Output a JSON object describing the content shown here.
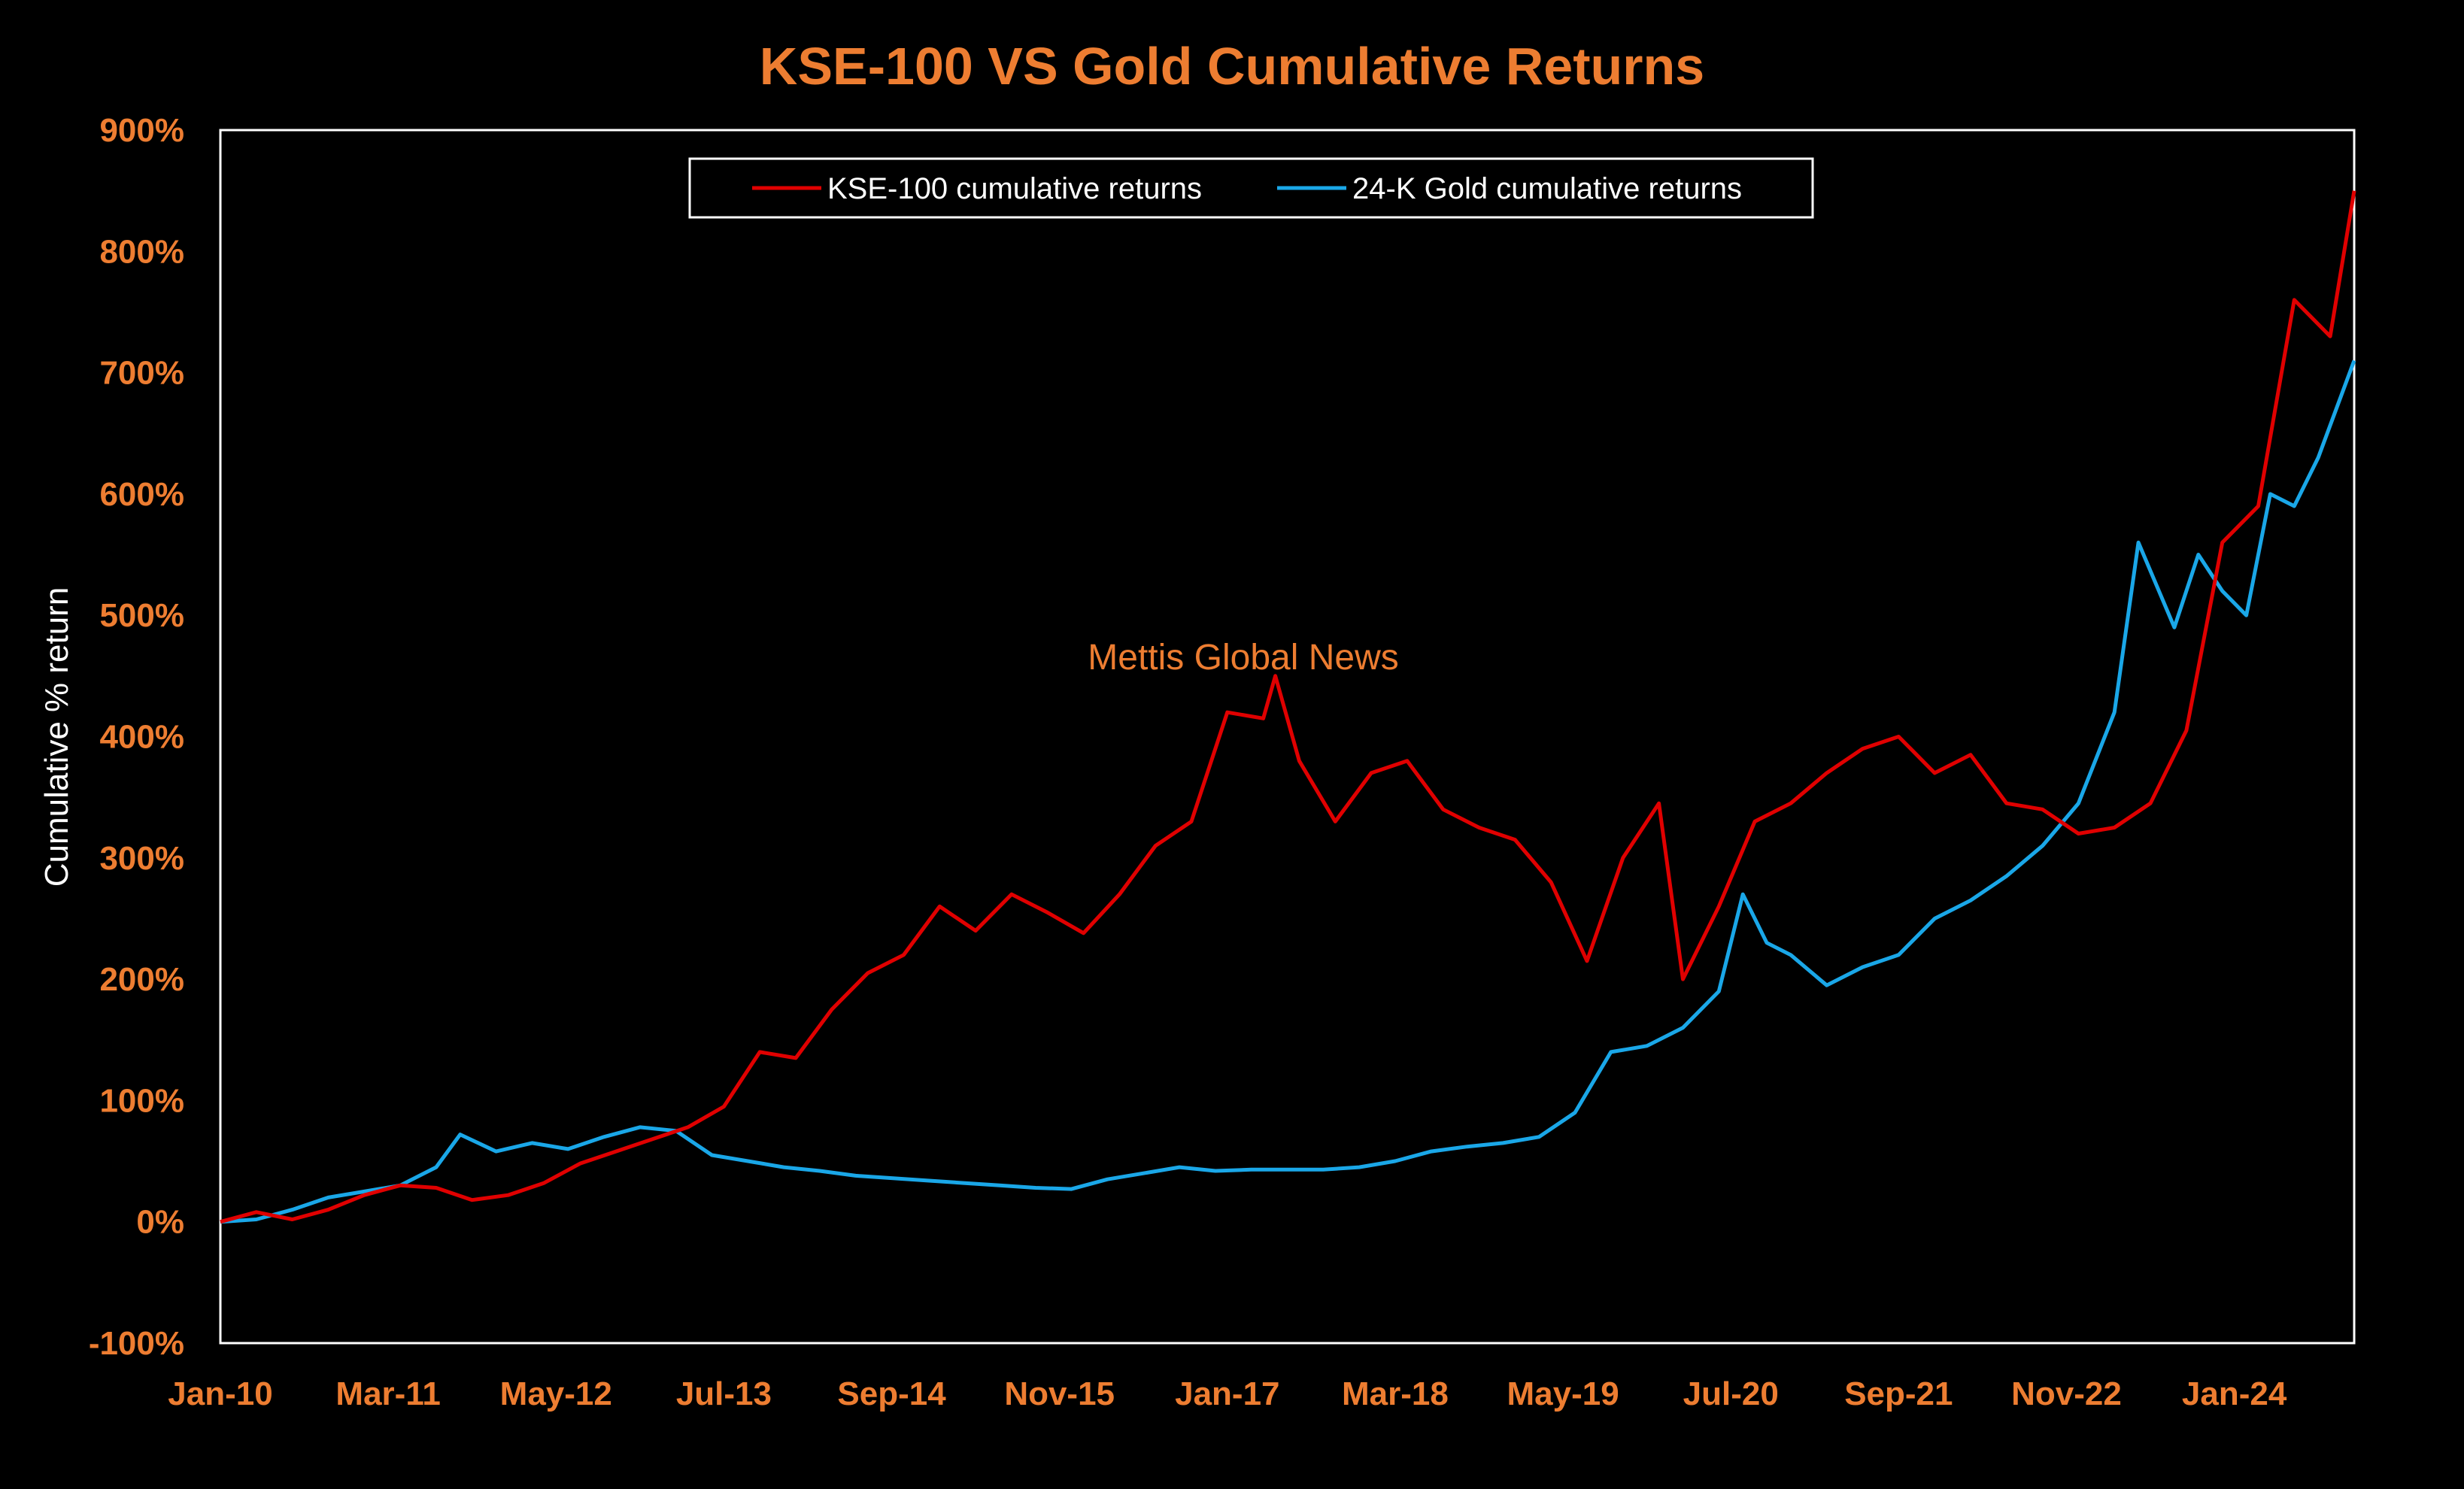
{
  "colors": {
    "background": "#000000",
    "accent": "#ED7D31",
    "axis_frame": "#FFFFFF",
    "kse": "#E00000",
    "gold": "#1AA7E8",
    "ylabel": "#FFFFFF",
    "legend_text": "#FFFFFF"
  },
  "watermark": "Mettis Global News",
  "chart_data": {
    "type": "line",
    "title": "KSE-100 VS Gold Cumulative Returns",
    "xlabel": "",
    "ylabel": "Cumulative % return",
    "ylim": [
      -100,
      900
    ],
    "xlim": [
      "2010-01",
      "2024-11"
    ],
    "yticks": [
      -100,
      0,
      100,
      200,
      300,
      400,
      500,
      600,
      700,
      800,
      900
    ],
    "ytick_labels": [
      "-100%",
      "0%",
      "100%",
      "200%",
      "300%",
      "400%",
      "500%",
      "600%",
      "700%",
      "800%",
      "900%"
    ],
    "xticks": [
      "2010-01",
      "2011-03",
      "2012-05",
      "2013-07",
      "2014-09",
      "2015-11",
      "2017-01",
      "2018-03",
      "2019-05",
      "2020-07",
      "2021-09",
      "2022-11",
      "2024-01"
    ],
    "xtick_labels": [
      "Jan-10",
      "Mar-11",
      "May-12",
      "Jul-13",
      "Sep-14",
      "Nov-15",
      "Jan-17",
      "Mar-18",
      "May-19",
      "Jul-20",
      "Sep-21",
      "Nov-22",
      "Jan-24"
    ],
    "grid": false,
    "legend_position": "top-center",
    "series": [
      {
        "name": "KSE-100 cumulative returns",
        "color": "#E00000",
        "points": [
          [
            "2010-01",
            0
          ],
          [
            "2010-04",
            8
          ],
          [
            "2010-07",
            2
          ],
          [
            "2010-10",
            10
          ],
          [
            "2011-01",
            22
          ],
          [
            "2011-04",
            30
          ],
          [
            "2011-07",
            28
          ],
          [
            "2011-10",
            18
          ],
          [
            "2012-01",
            22
          ],
          [
            "2012-04",
            32
          ],
          [
            "2012-07",
            48
          ],
          [
            "2012-10",
            58
          ],
          [
            "2013-01",
            68
          ],
          [
            "2013-04",
            78
          ],
          [
            "2013-07",
            95
          ],
          [
            "2013-10",
            140
          ],
          [
            "2014-01",
            135
          ],
          [
            "2014-04",
            175
          ],
          [
            "2014-07",
            205
          ],
          [
            "2014-10",
            220
          ],
          [
            "2015-01",
            260
          ],
          [
            "2015-04",
            240
          ],
          [
            "2015-07",
            270
          ],
          [
            "2015-10",
            255
          ],
          [
            "2016-01",
            238
          ],
          [
            "2016-04",
            270
          ],
          [
            "2016-07",
            310
          ],
          [
            "2016-10",
            330
          ],
          [
            "2017-01",
            420
          ],
          [
            "2017-04",
            415
          ],
          [
            "2017-05",
            450
          ],
          [
            "2017-07",
            380
          ],
          [
            "2017-10",
            330
          ],
          [
            "2018-01",
            370
          ],
          [
            "2018-04",
            380
          ],
          [
            "2018-07",
            340
          ],
          [
            "2018-10",
            325
          ],
          [
            "2019-01",
            315
          ],
          [
            "2019-04",
            280
          ],
          [
            "2019-07",
            215
          ],
          [
            "2019-10",
            300
          ],
          [
            "2020-01",
            345
          ],
          [
            "2020-03",
            200
          ],
          [
            "2020-06",
            260
          ],
          [
            "2020-09",
            330
          ],
          [
            "2020-12",
            345
          ],
          [
            "2021-03",
            370
          ],
          [
            "2021-06",
            390
          ],
          [
            "2021-09",
            400
          ],
          [
            "2021-12",
            370
          ],
          [
            "2022-03",
            385
          ],
          [
            "2022-06",
            345
          ],
          [
            "2022-09",
            340
          ],
          [
            "2022-12",
            320
          ],
          [
            "2023-03",
            325
          ],
          [
            "2023-06",
            345
          ],
          [
            "2023-09",
            405
          ],
          [
            "2023-12",
            560
          ],
          [
            "2024-03",
            590
          ],
          [
            "2024-06",
            760
          ],
          [
            "2024-09",
            730
          ],
          [
            "2024-11",
            850
          ]
        ]
      },
      {
        "name": "24-K Gold cumulative returns",
        "color": "#1AA7E8",
        "points": [
          [
            "2010-01",
            0
          ],
          [
            "2010-04",
            2
          ],
          [
            "2010-07",
            10
          ],
          [
            "2010-10",
            20
          ],
          [
            "2011-01",
            25
          ],
          [
            "2011-04",
            30
          ],
          [
            "2011-07",
            45
          ],
          [
            "2011-09",
            72
          ],
          [
            "2011-12",
            58
          ],
          [
            "2012-03",
            65
          ],
          [
            "2012-06",
            60
          ],
          [
            "2012-09",
            70
          ],
          [
            "2012-12",
            78
          ],
          [
            "2013-03",
            75
          ],
          [
            "2013-06",
            55
          ],
          [
            "2013-09",
            50
          ],
          [
            "2013-12",
            45
          ],
          [
            "2014-03",
            42
          ],
          [
            "2014-06",
            38
          ],
          [
            "2014-09",
            36
          ],
          [
            "2014-12",
            34
          ],
          [
            "2015-03",
            32
          ],
          [
            "2015-06",
            30
          ],
          [
            "2015-09",
            28
          ],
          [
            "2015-12",
            27
          ],
          [
            "2016-03",
            35
          ],
          [
            "2016-06",
            40
          ],
          [
            "2016-09",
            45
          ],
          [
            "2016-12",
            42
          ],
          [
            "2017-03",
            43
          ],
          [
            "2017-06",
            43
          ],
          [
            "2017-09",
            43
          ],
          [
            "2017-12",
            45
          ],
          [
            "2018-03",
            50
          ],
          [
            "2018-06",
            58
          ],
          [
            "2018-09",
            62
          ],
          [
            "2018-12",
            65
          ],
          [
            "2019-03",
            70
          ],
          [
            "2019-06",
            90
          ],
          [
            "2019-09",
            140
          ],
          [
            "2019-12",
            145
          ],
          [
            "2020-03",
            160
          ],
          [
            "2020-06",
            190
          ],
          [
            "2020-08",
            270
          ],
          [
            "2020-10",
            230
          ],
          [
            "2020-12",
            220
          ],
          [
            "2021-03",
            195
          ],
          [
            "2021-06",
            210
          ],
          [
            "2021-09",
            220
          ],
          [
            "2021-12",
            250
          ],
          [
            "2022-03",
            265
          ],
          [
            "2022-06",
            285
          ],
          [
            "2022-09",
            310
          ],
          [
            "2022-12",
            345
          ],
          [
            "2023-03",
            420
          ],
          [
            "2023-05",
            560
          ],
          [
            "2023-08",
            490
          ],
          [
            "2023-10",
            550
          ],
          [
            "2023-12",
            520
          ],
          [
            "2024-02",
            500
          ],
          [
            "2024-04",
            600
          ],
          [
            "2024-06",
            590
          ],
          [
            "2024-08",
            630
          ],
          [
            "2024-11",
            710
          ]
        ]
      }
    ]
  }
}
